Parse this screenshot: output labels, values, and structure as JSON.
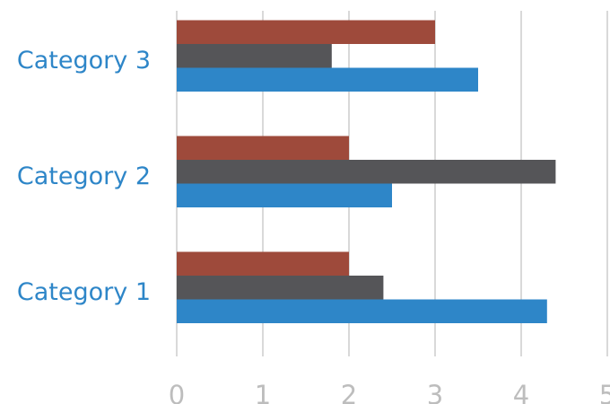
{
  "chart_data": {
    "type": "bar",
    "orientation": "horizontal",
    "categories": [
      "Category 1",
      "Category 2",
      "Category 3"
    ],
    "series": [
      {
        "values": [
          4.3,
          2.5,
          3.5
        ],
        "color": "#2e86c8"
      },
      {
        "values": [
          2.4,
          4.4,
          1.8
        ],
        "color": "#555558"
      },
      {
        "values": [
          2.0,
          2.0,
          3.0
        ],
        "color": "#9e4a3b"
      }
    ],
    "x_ticks": [
      "0",
      "1",
      "2",
      "3",
      "4",
      "5"
    ],
    "xlim": [
      0,
      5
    ],
    "title": "",
    "xlabel": "",
    "ylabel": "",
    "grid": "vertical",
    "legend": "none"
  },
  "colors": {
    "category_label": "#2e86c8",
    "tick_label": "#bdbdbd",
    "gridline": "#d9d9d9"
  }
}
